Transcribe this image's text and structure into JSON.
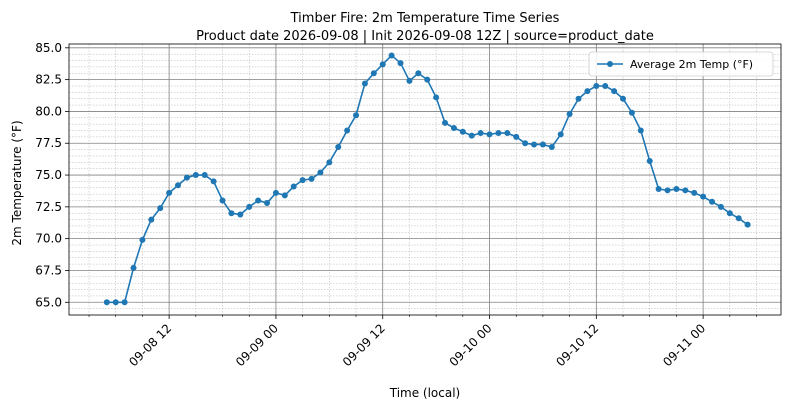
{
  "chart_data": {
    "type": "line",
    "title": "Timber Fire: 2m Temperature Time Series",
    "subtitle": "Product date 2026-09-08 | Init 2026-09-08 12Z | source=product_date",
    "xlabel": "Time (local)",
    "ylabel": "2m Temperature (°F)",
    "x_tick_values": [
      "2026-09-08 12:00",
      "2026-09-09 00:00",
      "2026-09-09 12:00",
      "2026-09-10 00:00",
      "2026-09-10 12:00",
      "2026-09-11 00:00"
    ],
    "x_tick_labels": [
      "09-08 12",
      "09-09 00",
      "09-09 12",
      "09-10 00",
      "09-10 12",
      "09-11 00"
    ],
    "xlim": [
      "2026-09-08 00:45",
      "2026-09-11 08:45"
    ],
    "ylim": [
      64,
      85.3
    ],
    "y_ticks": [
      65.0,
      67.5,
      70.0,
      72.5,
      75.0,
      77.5,
      80.0,
      82.5,
      85.0
    ],
    "y_tick_labels": [
      "65.0",
      "67.5",
      "70.0",
      "72.5",
      "75.0",
      "77.5",
      "80.0",
      "82.5",
      "85.0"
    ],
    "grid": true,
    "minor_grid": true,
    "legend_position": "top-right",
    "series": [
      {
        "name": "Average 2m Temp (°F)",
        "color": "#1f77b4",
        "marker": "circle",
        "x": [
          "2026-09-08 05:00",
          "2026-09-08 06:00",
          "2026-09-08 07:00",
          "2026-09-08 08:00",
          "2026-09-08 09:00",
          "2026-09-08 10:00",
          "2026-09-08 11:00",
          "2026-09-08 12:00",
          "2026-09-08 13:00",
          "2026-09-08 14:00",
          "2026-09-08 15:00",
          "2026-09-08 16:00",
          "2026-09-08 17:00",
          "2026-09-08 18:00",
          "2026-09-08 19:00",
          "2026-09-08 20:00",
          "2026-09-08 21:00",
          "2026-09-08 22:00",
          "2026-09-08 23:00",
          "2026-09-09 00:00",
          "2026-09-09 01:00",
          "2026-09-09 02:00",
          "2026-09-09 03:00",
          "2026-09-09 04:00",
          "2026-09-09 05:00",
          "2026-09-09 06:00",
          "2026-09-09 07:00",
          "2026-09-09 08:00",
          "2026-09-09 09:00",
          "2026-09-09 10:00",
          "2026-09-09 11:00",
          "2026-09-09 12:00",
          "2026-09-09 13:00",
          "2026-09-09 14:00",
          "2026-09-09 15:00",
          "2026-09-09 16:00",
          "2026-09-09 17:00",
          "2026-09-09 18:00",
          "2026-09-09 19:00",
          "2026-09-09 20:00",
          "2026-09-09 21:00",
          "2026-09-09 22:00",
          "2026-09-09 23:00",
          "2026-09-10 00:00",
          "2026-09-10 01:00",
          "2026-09-10 02:00",
          "2026-09-10 03:00",
          "2026-09-10 04:00",
          "2026-09-10 05:00",
          "2026-09-10 06:00",
          "2026-09-10 07:00",
          "2026-09-10 08:00",
          "2026-09-10 09:00",
          "2026-09-10 10:00",
          "2026-09-10 11:00",
          "2026-09-10 12:00",
          "2026-09-10 13:00",
          "2026-09-10 14:00",
          "2026-09-10 15:00",
          "2026-09-10 16:00",
          "2026-09-10 17:00",
          "2026-09-10 18:00",
          "2026-09-10 19:00",
          "2026-09-10 20:00",
          "2026-09-10 21:00",
          "2026-09-10 22:00",
          "2026-09-10 23:00",
          "2026-09-11 00:00",
          "2026-09-11 01:00",
          "2026-09-11 02:00",
          "2026-09-11 03:00",
          "2026-09-11 04:00",
          "2026-09-11 05:00"
        ],
        "values": [
          65.0,
          65.0,
          65.0,
          67.7,
          69.9,
          71.5,
          72.4,
          73.6,
          74.2,
          74.8,
          75.0,
          75.0,
          74.5,
          73.0,
          72.0,
          71.9,
          72.5,
          73.0,
          72.8,
          73.6,
          73.4,
          74.1,
          74.6,
          74.7,
          75.2,
          76.0,
          77.2,
          78.5,
          79.7,
          82.2,
          83.0,
          83.7,
          84.4,
          83.8,
          82.4,
          83.0,
          82.5,
          81.1,
          79.1,
          78.7,
          78.4,
          78.1,
          78.3,
          78.2,
          78.3,
          78.3,
          78.0,
          77.5,
          77.4,
          77.4,
          77.2,
          78.2,
          79.8,
          81.0,
          81.6,
          82.0,
          82.0,
          81.6,
          81.0,
          79.9,
          78.5,
          76.1,
          73.9,
          73.8,
          73.9,
          73.8,
          73.6,
          73.3,
          72.9,
          72.5,
          72.0,
          71.6,
          71.1
        ]
      }
    ]
  }
}
